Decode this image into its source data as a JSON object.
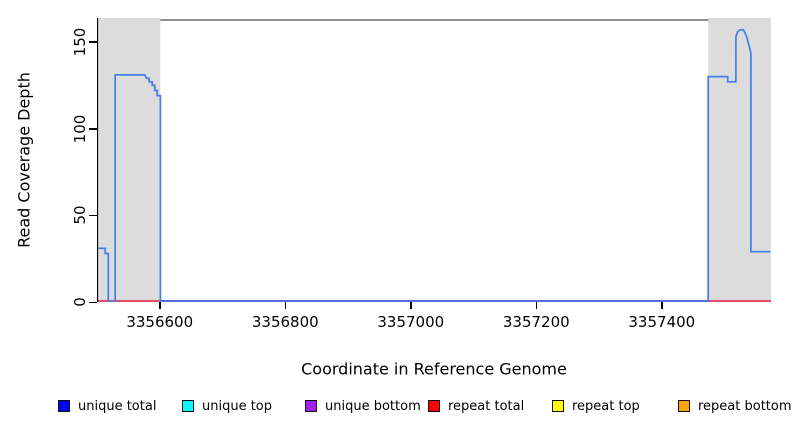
{
  "chart_data": {
    "type": "line",
    "title": "",
    "xlabel": "Coordinate in Reference Genome",
    "ylabel": "Read Coverage Depth",
    "x_range": [
      3356500,
      3357574
    ],
    "y_range": [
      0,
      163.8
    ],
    "x_ticks": [
      3356600,
      3356800,
      3357000,
      3357200,
      3357400
    ],
    "y_ticks": [
      0,
      50,
      100,
      150
    ],
    "grid": false,
    "legend_position": "bottom",
    "shaded_regions": [
      {
        "name": "repeat-region-left",
        "x0": 3356501,
        "x1": 3356601
      },
      {
        "name": "repeat-region-right",
        "x0": 3357474,
        "x1": 3357574
      }
    ],
    "series": [
      {
        "name": "unique total",
        "points": [
          [
            3356500,
            31
          ],
          [
            3356513,
            31
          ],
          [
            3356513,
            28
          ],
          [
            3356518,
            28
          ],
          [
            3356518,
            0
          ],
          [
            3356529,
            0
          ],
          [
            3356529,
            131
          ],
          [
            3356576,
            131
          ],
          [
            3356579,
            129
          ],
          [
            3356583,
            129
          ],
          [
            3356583,
            127
          ],
          [
            3356588,
            127
          ],
          [
            3356588,
            125
          ],
          [
            3356592,
            125
          ],
          [
            3356592,
            122
          ],
          [
            3356596,
            122
          ],
          [
            3356596,
            119
          ],
          [
            3356601,
            119
          ],
          [
            3356601,
            0
          ],
          [
            3357474,
            0
          ],
          [
            3357474,
            130
          ],
          [
            3357505,
            130
          ],
          [
            3357505,
            127
          ],
          [
            3357518,
            127
          ],
          [
            3357518,
            153
          ],
          [
            3357521,
            156
          ],
          [
            3357525,
            157
          ],
          [
            3357530,
            157
          ],
          [
            3357533,
            155
          ],
          [
            3357536,
            152
          ],
          [
            3357539,
            148
          ],
          [
            3357541,
            145
          ],
          [
            3357542,
            143
          ],
          [
            3357542,
            29
          ],
          [
            3357573,
            29
          ]
        ]
      },
      {
        "name": "unique top",
        "points": [
          [
            3356500,
            0
          ],
          [
            3357574,
            0
          ]
        ]
      },
      {
        "name": "unique bottom",
        "points": [
          [
            3356500,
            0
          ],
          [
            3357574,
            0
          ]
        ]
      },
      {
        "name": "repeat total",
        "points": [
          [
            3356500,
            0
          ],
          [
            3357574,
            0
          ]
        ]
      },
      {
        "name": "repeat top",
        "points": [
          [
            3356500,
            0
          ],
          [
            3357574,
            0
          ]
        ]
      },
      {
        "name": "repeat bottom",
        "points": [
          [
            3356500,
            0
          ],
          [
            3357574,
            0
          ]
        ]
      }
    ]
  },
  "style": {
    "unique_total_line": "#4180E8",
    "zero_line_in_repeat_regions": "#E0506E",
    "zero_line_between_regions": "#6361D8",
    "shaded_region_fill": "#DCDCDC",
    "top_border_line": "#8E8E8E",
    "axis_color": "#000000"
  },
  "legend": {
    "items": [
      {
        "label": "unique total",
        "color": "#0000FF"
      },
      {
        "label": "unique top",
        "color": "#00FFFF"
      },
      {
        "label": "unique bottom",
        "color": "#A020F0"
      },
      {
        "label": "repeat total",
        "color": "#FF0000"
      },
      {
        "label": "repeat top",
        "color": "#FFFF00"
      },
      {
        "label": "repeat bottom",
        "color": "#FFA500"
      }
    ]
  }
}
